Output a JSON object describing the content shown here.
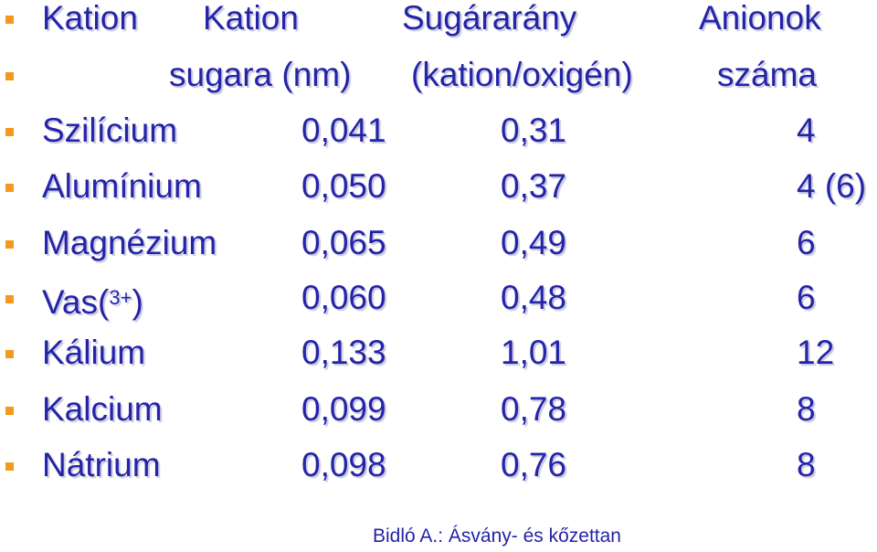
{
  "header": {
    "line1": [
      "Kation",
      "Kation",
      "Sugárarány",
      "Anionok"
    ],
    "line2": [
      "sugara (nm)",
      "(kation/oxigén)",
      "száma"
    ]
  },
  "table": {
    "rows": [
      [
        "Szilícium",
        "0,041",
        "0,31",
        "4"
      ],
      [
        "Alumínium",
        "0,050",
        "0,37",
        "4 (6)"
      ],
      [
        "Magnézium",
        "0,065",
        "0,49",
        "6"
      ],
      [
        {
          "text": "Vas(",
          "sup": "3+",
          "after": ")"
        },
        "0,060",
        "0,48",
        "6"
      ],
      [
        "Kálium",
        "0,133",
        "1,01",
        "12"
      ],
      [
        "Kalcium",
        "0,099",
        "0,78",
        "8"
      ],
      [
        "Nátrium",
        "0,098",
        "0,76",
        "8"
      ]
    ]
  },
  "footer": "Bidló A.: Ásvány- és kőzettan"
}
